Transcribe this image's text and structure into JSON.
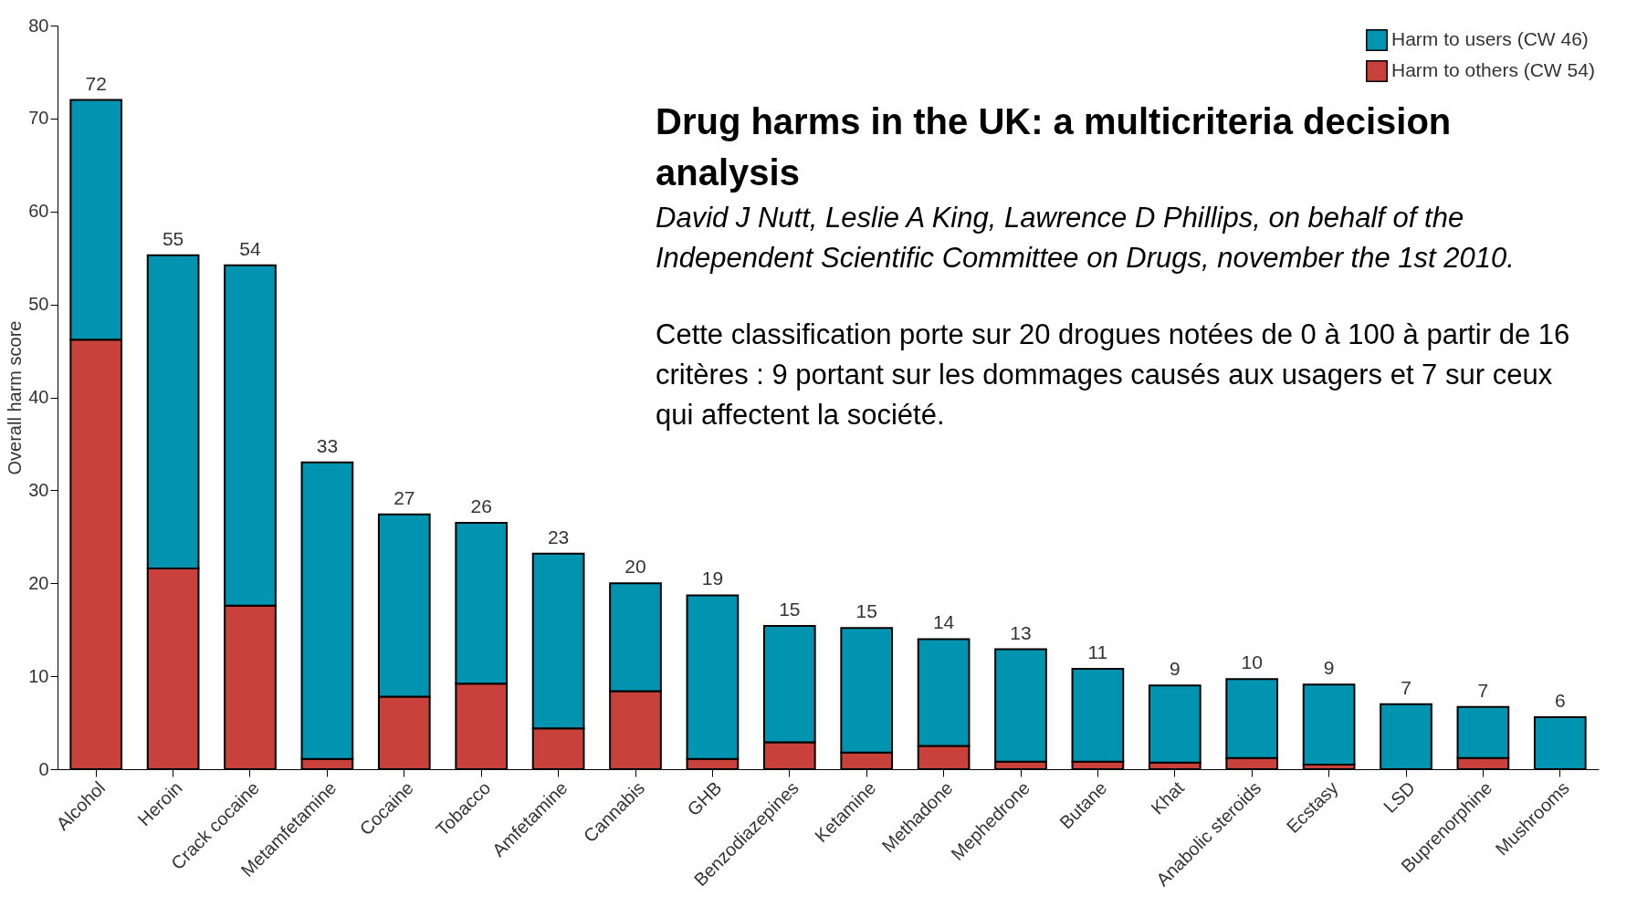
{
  "chart_data": {
    "type": "bar",
    "stacked": true,
    "title": "Drug harms in the UK: a multicriteria decision analysis",
    "subtitle": "David J Nutt, Leslie A King, Lawrence D Phillips, on behalf of the Independent Scientific Committee on Drugs, november the 1st 2010.",
    "annotations": [
      "Cette classification porte sur 20 drogues notées de 0 à 100 à partir de 16 critères : 9 portant sur les dommages causés aux usagers et 7 sur ceux qui affectent la société."
    ],
    "ylabel": "Overall harm score",
    "categories": [
      "Alcohol",
      "Heroin",
      "Crack cocaine",
      "Metamfetamine",
      "Cocaine",
      "Tobacco",
      "Amfetamine",
      "Cannabis",
      "GHB",
      "Benzodiazepines",
      "Ketamine",
      "Methadone",
      "Mephedrone",
      "Butane",
      "Khat",
      "Anabolic steroids",
      "Ecstasy",
      "LSD",
      "Buprenorphine",
      "Mushrooms"
    ],
    "series": [
      {
        "name": "Harm to others (CW 54)",
        "color": "#c8413a",
        "values": [
          46.2,
          21.6,
          17.6,
          1.1,
          7.8,
          9.2,
          4.4,
          8.4,
          1.1,
          2.9,
          1.8,
          2.5,
          0.8,
          0.8,
          0.7,
          1.2,
          0.5,
          0,
          1.2,
          0
        ]
      },
      {
        "name": "Harm to users (CW 46)",
        "color": "#0094b0",
        "values": [
          25.8,
          33.7,
          36.6,
          31.9,
          19.6,
          17.3,
          18.8,
          11.6,
          17.6,
          12.5,
          13.4,
          11.5,
          12.1,
          10.0,
          8.3,
          8.5,
          8.6,
          7.0,
          5.5,
          5.6
        ]
      }
    ],
    "totals": [
      "72",
      "55",
      "54",
      "33",
      "27",
      "26",
      "23",
      "20",
      "19",
      "15",
      "15",
      "14",
      "13",
      "11",
      "9",
      "10",
      "9",
      "7",
      "7",
      "6"
    ],
    "ylim": [
      0,
      80
    ],
    "yticks": [
      0,
      10,
      20,
      30,
      40,
      50,
      60,
      70,
      80
    ],
    "grid": false,
    "legend": "top right"
  }
}
